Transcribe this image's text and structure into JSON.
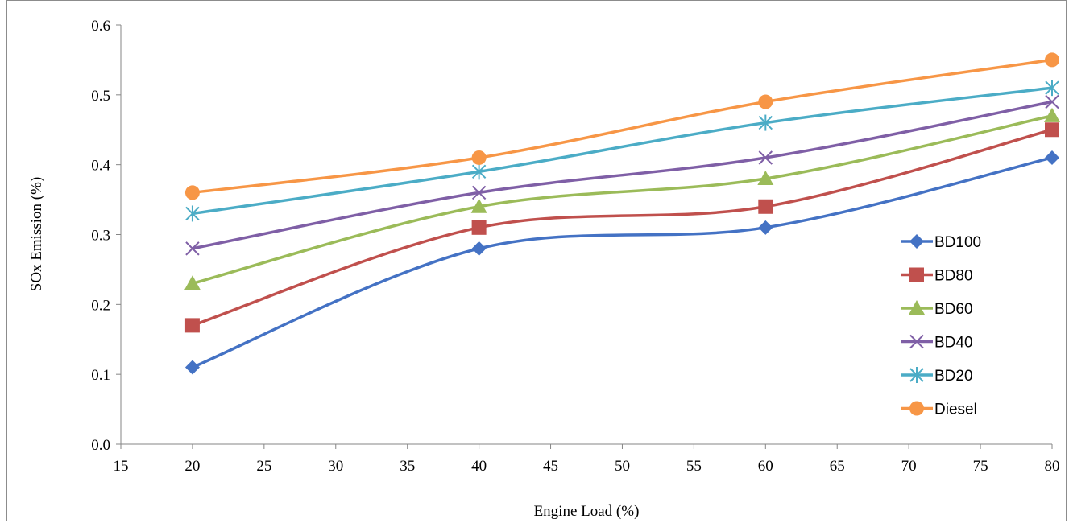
{
  "chart_data": {
    "type": "line",
    "title": "",
    "xlabel": "Engine Load (%)",
    "ylabel": "SOx Emission (%)",
    "xlim": [
      15,
      80
    ],
    "ylim": [
      0,
      0.6
    ],
    "x_ticks": [
      "15",
      "20",
      "25",
      "30",
      "35",
      "40",
      "45",
      "50",
      "55",
      "60",
      "65",
      "70",
      "75",
      "80"
    ],
    "y_ticks": [
      "0.0",
      "0.1",
      "0.2",
      "0.3",
      "0.4",
      "0.5",
      "0.6"
    ],
    "grid": false,
    "legend_position": "right",
    "x": [
      20,
      40,
      60,
      80
    ],
    "series": [
      {
        "name": "BD100",
        "values": [
          0.11,
          0.28,
          0.31,
          0.41
        ],
        "color": "#4472C4",
        "marker": "diamond"
      },
      {
        "name": "BD80",
        "values": [
          0.17,
          0.31,
          0.34,
          0.45
        ],
        "color": "#C0504D",
        "marker": "square"
      },
      {
        "name": "BD60",
        "values": [
          0.23,
          0.34,
          0.38,
          0.47
        ],
        "color": "#9BBB59",
        "marker": "triangle"
      },
      {
        "name": "BD40",
        "values": [
          0.28,
          0.36,
          0.41,
          0.49
        ],
        "color": "#7F5FA6",
        "marker": "x"
      },
      {
        "name": "BD20",
        "values": [
          0.33,
          0.39,
          0.46,
          0.51
        ],
        "color": "#4BACC6",
        "marker": "star"
      },
      {
        "name": "Diesel",
        "values": [
          0.36,
          0.41,
          0.49,
          0.55
        ],
        "color": "#F79646",
        "marker": "circle"
      }
    ]
  }
}
